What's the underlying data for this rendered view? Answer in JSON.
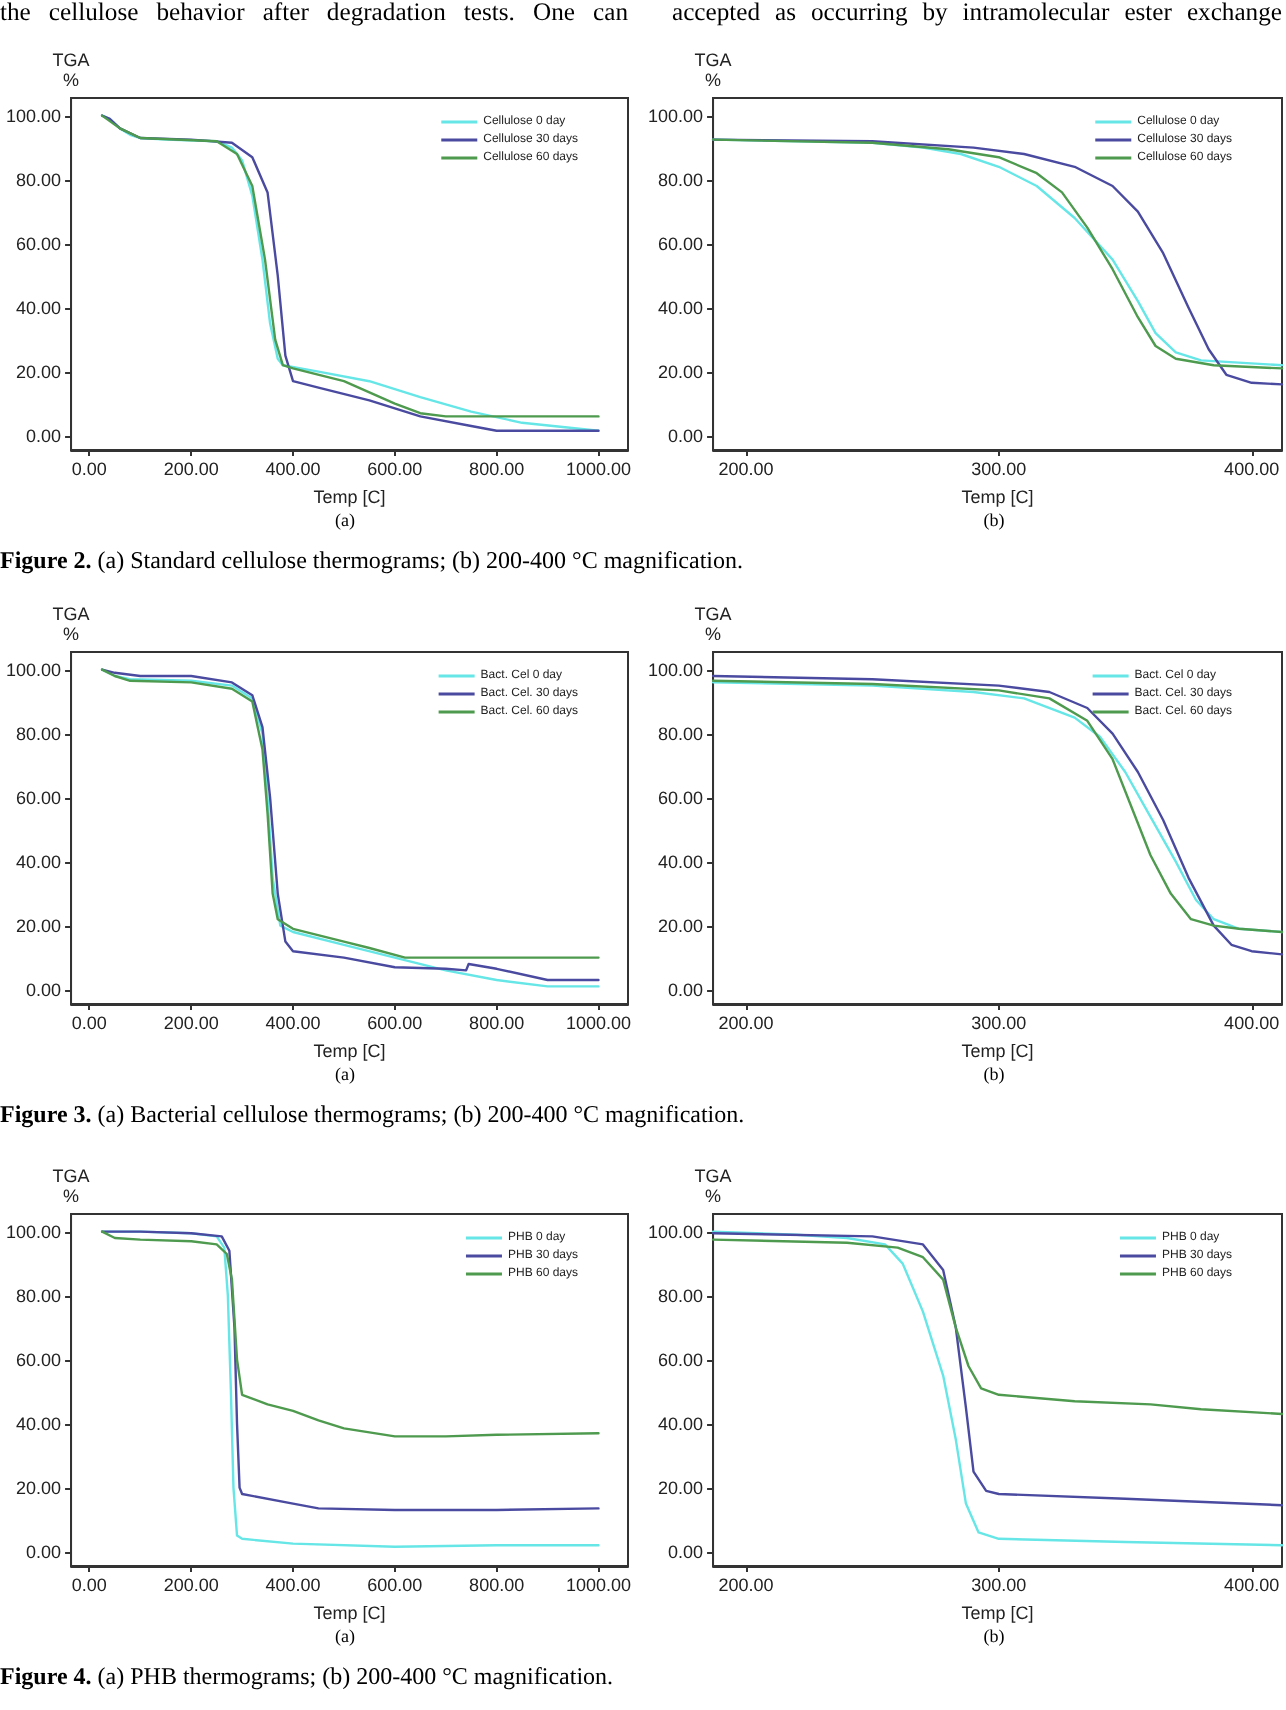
{
  "chart_data": [
    {
      "type": "line",
      "xlabel": "Temp [C]",
      "ylabel": "TGA\n%",
      "xlim": [
        -36,
        1058
      ],
      "ylim": [
        -4.5,
        105.5
      ],
      "xticks": [
        {
          "value": 0,
          "label": "0.00"
        },
        {
          "value": 200,
          "label": "200.00"
        },
        {
          "value": 400,
          "label": "400.00"
        },
        {
          "value": 600,
          "label": "600.00"
        },
        {
          "value": 800,
          "label": "800.00"
        },
        {
          "value": 1000,
          "label": "1000.00"
        }
      ],
      "yticks": [
        {
          "value": 0,
          "label": "0.00"
        },
        {
          "value": 20,
          "label": "20.00"
        },
        {
          "value": 40,
          "label": "40.00"
        },
        {
          "value": 60,
          "label": "60.00"
        },
        {
          "value": 80,
          "label": "80.00"
        },
        {
          "value": 100,
          "label": "100.00"
        }
      ],
      "grid": false,
      "legend": "top right",
      "marker": "none",
      "series": [
        {
          "name": "Cellulose 0 day",
          "color": "#66e6e6",
          "x": [
            25,
            40,
            60,
            80,
            100,
            150,
            250,
            280,
            300,
            320,
            340,
            355,
            370,
            380,
            450,
            550,
            650,
            750,
            850,
            1000
          ],
          "values": [
            100,
            99,
            96,
            94,
            93,
            92.5,
            92,
            90,
            86,
            75,
            55,
            35,
            24,
            22,
            20,
            17,
            12,
            7.5,
            4,
            1.5
          ]
        },
        {
          "name": "Cellulose 30 days",
          "color": "#4a4aa0",
          "x": [
            25,
            40,
            60,
            100,
            200,
            280,
            320,
            350,
            370,
            385,
            400,
            450,
            550,
            650,
            750,
            800,
            1000
          ],
          "values": [
            100,
            99,
            96,
            93,
            92.5,
            91.5,
            87,
            76,
            50,
            25,
            17,
            15,
            11,
            6,
            3,
            1.5,
            1.5
          ]
        },
        {
          "name": "Cellulose 60 days",
          "color": "#4e9a4e",
          "x": [
            25,
            60,
            100,
            250,
            290,
            320,
            345,
            365,
            380,
            400,
            500,
            600,
            650,
            700,
            1000
          ],
          "values": [
            100,
            96,
            93,
            92,
            88,
            78,
            55,
            30,
            22,
            21,
            17,
            10,
            7,
            6,
            6
          ]
        }
      ],
      "annotations": [
        "(a)",
        "Figure 2. (a) Standard cellulose thermograms; (b) 200-400 °C magnification.",
        "the cellulose behavior after degradation tests. One can"
      ]
    },
    {
      "type": "line",
      "xlabel": "Temp [C]",
      "ylabel": "TGA\n%",
      "xlim": [
        187,
        412
      ],
      "ylim": [
        -4.5,
        105.5
      ],
      "xticks": [
        {
          "value": 200,
          "label": "200.00"
        },
        {
          "value": 300,
          "label": "300.00"
        },
        {
          "value": 400,
          "label": "400.00"
        }
      ],
      "yticks": [
        {
          "value": 0,
          "label": "0.00"
        },
        {
          "value": 20,
          "label": "20.00"
        },
        {
          "value": 40,
          "label": "40.00"
        },
        {
          "value": 60,
          "label": "60.00"
        },
        {
          "value": 80,
          "label": "80.00"
        },
        {
          "value": 100,
          "label": "100.00"
        }
      ],
      "grid": false,
      "legend": "top right",
      "marker": "none",
      "series": [
        {
          "name": "Cellulose 0 day",
          "color": "#66e6e6",
          "x": [
            187,
            250,
            270,
            285,
            300,
            315,
            330,
            345,
            355,
            362,
            370,
            380,
            412
          ],
          "values": [
            92.5,
            91.5,
            90,
            88,
            84,
            78,
            68,
            55,
            42,
            32,
            26,
            23.5,
            22
          ]
        },
        {
          "name": "Cellulose 30 days",
          "color": "#4a4aa0",
          "x": [
            187,
            250,
            290,
            310,
            330,
            345,
            355,
            365,
            375,
            383,
            390,
            400,
            412
          ],
          "values": [
            92.5,
            92,
            90,
            88,
            84,
            78,
            70,
            57,
            40,
            27,
            19,
            16.5,
            16
          ]
        },
        {
          "name": "Cellulose 60 days",
          "color": "#4e9a4e",
          "x": [
            187,
            250,
            280,
            300,
            315,
            325,
            335,
            345,
            355,
            362,
            370,
            385,
            412
          ],
          "values": [
            92.5,
            91.5,
            89.5,
            87,
            82,
            76,
            65,
            52,
            37,
            28,
            24,
            22,
            21
          ]
        }
      ],
      "annotations": [
        "(b)",
        "accepted as occurring by intramolecular ester exchange"
      ]
    },
    {
      "type": "line",
      "xlabel": "Temp [C]",
      "ylabel": "TGA\n%",
      "xlim": [
        -36,
        1058
      ],
      "ylim": [
        -4.5,
        105.5
      ],
      "xticks": [
        {
          "value": 0,
          "label": "0.00"
        },
        {
          "value": 200,
          "label": "200.00"
        },
        {
          "value": 400,
          "label": "400.00"
        },
        {
          "value": 600,
          "label": "600.00"
        },
        {
          "value": 800,
          "label": "800.00"
        },
        {
          "value": 1000,
          "label": "1000.00"
        }
      ],
      "yticks": [
        {
          "value": 0,
          "label": "0.00"
        },
        {
          "value": 20,
          "label": "20.00"
        },
        {
          "value": 40,
          "label": "40.00"
        },
        {
          "value": 60,
          "label": "60.00"
        },
        {
          "value": 80,
          "label": "80.00"
        },
        {
          "value": 100,
          "label": "100.00"
        }
      ],
      "grid": false,
      "legend": "top right",
      "marker": "none",
      "series": [
        {
          "name": "Bact. Cel 0 day",
          "color": "#66e6e6",
          "x": [
            25,
            50,
            80,
            200,
            280,
            320,
            340,
            350,
            360,
            375,
            400,
            500,
            600,
            700,
            800,
            900,
            1000
          ],
          "values": [
            100,
            98,
            97,
            96.5,
            95,
            91,
            80,
            60,
            35,
            20,
            18,
            14,
            10,
            6,
            3,
            1,
            1
          ]
        },
        {
          "name": "Bact. Cel. 30 days",
          "color": "#4a4aa0",
          "x": [
            25,
            50,
            100,
            200,
            280,
            320,
            340,
            355,
            370,
            385,
            400,
            500,
            600,
            700,
            740,
            745,
            800,
            900,
            1000
          ],
          "values": [
            100,
            99,
            98,
            98,
            96,
            92,
            82,
            60,
            30,
            15,
            12,
            10,
            7,
            6.5,
            6,
            8,
            6.5,
            3,
            3
          ]
        },
        {
          "name": "Bact. Cel. 60 days",
          "color": "#4e9a4e",
          "x": [
            25,
            50,
            80,
            200,
            280,
            320,
            340,
            350,
            360,
            370,
            400,
            500,
            550,
            620,
            1000
          ],
          "values": [
            100,
            98,
            96.5,
            96,
            94,
            90,
            75,
            55,
            30,
            22,
            19,
            15,
            13,
            10,
            10
          ]
        }
      ],
      "annotations": [
        "(a)",
        "Figure 3. (a) Bacterial cellulose thermograms; (b) 200-400 °C magnification."
      ]
    },
    {
      "type": "line",
      "xlabel": "Temp [C]",
      "ylabel": "TGA\n%",
      "xlim": [
        187,
        412
      ],
      "ylim": [
        -4.5,
        105.5
      ],
      "xticks": [
        {
          "value": 200,
          "label": "200.00"
        },
        {
          "value": 300,
          "label": "300.00"
        },
        {
          "value": 400,
          "label": "400.00"
        }
      ],
      "yticks": [
        {
          "value": 0,
          "label": "0.00"
        },
        {
          "value": 20,
          "label": "20.00"
        },
        {
          "value": 40,
          "label": "40.00"
        },
        {
          "value": 60,
          "label": "60.00"
        },
        {
          "value": 80,
          "label": "80.00"
        },
        {
          "value": 100,
          "label": "100.00"
        }
      ],
      "grid": false,
      "legend": "top right",
      "marker": "none",
      "series": [
        {
          "name": "Bact. Cel 0 day",
          "color": "#66e6e6",
          "x": [
            187,
            250,
            290,
            310,
            330,
            340,
            350,
            360,
            370,
            378,
            385,
            395,
            412
          ],
          "values": [
            96,
            95,
            93,
            91,
            85,
            79,
            68,
            54,
            40,
            28,
            22,
            19,
            18
          ]
        },
        {
          "name": "Bact. Cel. 30 days",
          "color": "#4a4aa0",
          "x": [
            187,
            250,
            300,
            320,
            335,
            345,
            355,
            365,
            375,
            385,
            392,
            400,
            412
          ],
          "values": [
            98,
            97,
            95,
            93,
            88,
            80,
            68,
            53,
            35,
            20,
            14,
            12,
            11
          ]
        },
        {
          "name": "Bact. Cel. 60 days",
          "color": "#4e9a4e",
          "x": [
            187,
            250,
            300,
            320,
            335,
            345,
            352,
            360,
            368,
            376,
            385,
            395,
            412
          ],
          "values": [
            96.5,
            95.5,
            93.5,
            91,
            84,
            72,
            58,
            42,
            30,
            22,
            20,
            19,
            18
          ]
        }
      ],
      "annotations": [
        "(b)"
      ]
    },
    {
      "type": "line",
      "xlabel": "Temp [C]",
      "ylabel": "TGA\n%",
      "xlim": [
        -36,
        1058
      ],
      "ylim": [
        -4.5,
        105.5
      ],
      "xticks": [
        {
          "value": 0,
          "label": "0.00"
        },
        {
          "value": 200,
          "label": "200.00"
        },
        {
          "value": 400,
          "label": "400.00"
        },
        {
          "value": 600,
          "label": "600.00"
        },
        {
          "value": 800,
          "label": "800.00"
        },
        {
          "value": 1000,
          "label": "1000.00"
        }
      ],
      "yticks": [
        {
          "value": 0,
          "label": "0.00"
        },
        {
          "value": 20,
          "label": "20.00"
        },
        {
          "value": 40,
          "label": "40.00"
        },
        {
          "value": 60,
          "label": "60.00"
        },
        {
          "value": 80,
          "label": "80.00"
        },
        {
          "value": 100,
          "label": "100.00"
        }
      ],
      "grid": false,
      "legend": "top right",
      "marker": "none",
      "series": [
        {
          "name": "PHB 0 day",
          "color": "#66e6e6",
          "x": [
            25,
            100,
            200,
            250,
            265,
            272,
            278,
            283,
            290,
            300,
            400,
            600,
            800,
            1000
          ],
          "values": [
            100,
            100,
            99.5,
            98.5,
            95,
            80,
            50,
            20,
            5,
            4,
            2.5,
            1.5,
            2,
            2
          ]
        },
        {
          "name": "PHB 30 days",
          "color": "#4a4aa0",
          "x": [
            25,
            100,
            200,
            260,
            275,
            285,
            290,
            295,
            300,
            400,
            450,
            600,
            800,
            1000
          ],
          "values": [
            100,
            100,
            99.5,
            98.5,
            94,
            70,
            40,
            20,
            18,
            15,
            13.5,
            13,
            13,
            13.5
          ]
        },
        {
          "name": "PHB 60 days",
          "color": "#4e9a4e",
          "x": [
            25,
            50,
            100,
            200,
            250,
            270,
            280,
            290,
            300,
            350,
            400,
            450,
            500,
            600,
            700,
            800,
            1000
          ],
          "values": [
            100,
            98,
            97.5,
            97,
            96,
            93,
            85,
            60,
            49,
            46,
            44,
            41,
            38.5,
            36,
            36,
            36.5,
            37
          ]
        }
      ],
      "annotations": [
        "(a)",
        "Figure 4. (a) PHB thermograms; (b) 200-400 °C magnification."
      ]
    },
    {
      "type": "line",
      "xlabel": "Temp [C]",
      "ylabel": "TGA\n%",
      "xlim": [
        187,
        412
      ],
      "ylim": [
        -4.5,
        105.5
      ],
      "xticks": [
        {
          "value": 200,
          "label": "200.00"
        },
        {
          "value": 300,
          "label": "300.00"
        },
        {
          "value": 400,
          "label": "400.00"
        }
      ],
      "yticks": [
        {
          "value": 0,
          "label": "0.00"
        },
        {
          "value": 20,
          "label": "20.00"
        },
        {
          "value": 40,
          "label": "40.00"
        },
        {
          "value": 60,
          "label": "60.00"
        },
        {
          "value": 80,
          "label": "80.00"
        },
        {
          "value": 100,
          "label": "100.00"
        }
      ],
      "grid": false,
      "legend": "top right",
      "marker": "none",
      "series": [
        {
          "name": "PHB 0 day",
          "color": "#66e6e6",
          "x": [
            187,
            220,
            240,
            255,
            262,
            270,
            278,
            283,
            287,
            292,
            300,
            350,
            412
          ],
          "values": [
            100,
            99,
            98,
            96,
            90,
            75,
            55,
            35,
            15,
            6,
            4,
            3,
            2
          ]
        },
        {
          "name": "PHB 30 days",
          "color": "#4a4aa0",
          "x": [
            187,
            250,
            270,
            278,
            283,
            287,
            290,
            295,
            300,
            350,
            412
          ],
          "values": [
            99.5,
            98.5,
            96,
            88,
            70,
            45,
            25,
            19,
            18,
            16.5,
            14.5
          ]
        },
        {
          "name": "PHB 60 days",
          "color": "#4e9a4e",
          "x": [
            187,
            240,
            260,
            270,
            278,
            283,
            288,
            293,
            300,
            330,
            360,
            380,
            412
          ],
          "values": [
            97.5,
            96.5,
            95,
            92,
            85,
            70,
            58,
            51,
            49,
            47,
            46,
            44.5,
            43
          ]
        }
      ],
      "annotations": [
        "(b)"
      ]
    }
  ]
}
